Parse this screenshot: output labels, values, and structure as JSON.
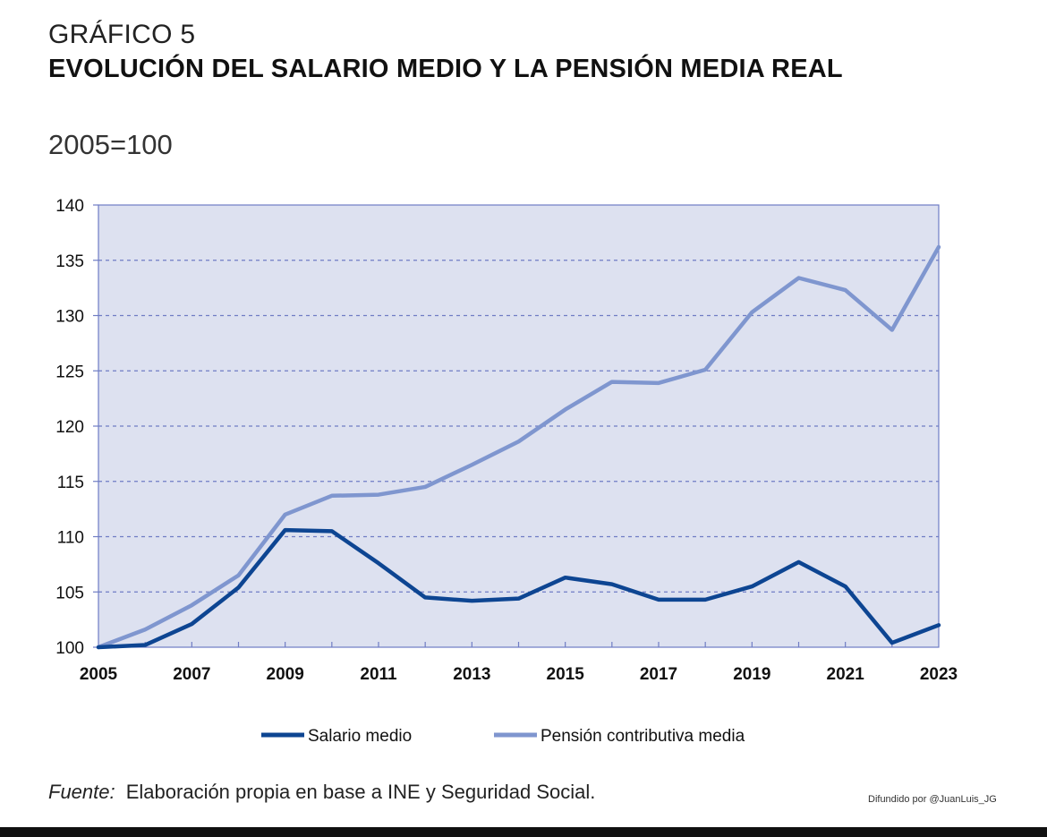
{
  "header": {
    "figure_label": "GRÁFICO 5",
    "title": "EVOLUCIÓN DEL SALARIO MEDIO Y LA PENSIÓN MEDIA REAL",
    "subtitle": "2005=100"
  },
  "footer": {
    "source_label": "Fuente:",
    "source_text": "Elaboración propia en base a INE y Seguridad Social.",
    "credit": "Difundido por @JuanLuis_JG"
  },
  "colors": {
    "plot_background": "#dde1f0",
    "grid": "#6f7cc4",
    "salario": "#0d4592",
    "pension": "#7f96cf"
  },
  "chart_data": {
    "type": "line",
    "x": [
      2005,
      2006,
      2007,
      2008,
      2009,
      2010,
      2011,
      2012,
      2013,
      2014,
      2015,
      2016,
      2017,
      2018,
      2019,
      2020,
      2021,
      2022,
      2023
    ],
    "x_tick_labels": [
      "2005",
      "2007",
      "2009",
      "2011",
      "2013",
      "2015",
      "2017",
      "2019",
      "2021",
      "2023"
    ],
    "y_tick_labels": [
      "100",
      "105",
      "110",
      "115",
      "120",
      "125",
      "130",
      "135",
      "140"
    ],
    "xlim": [
      2005,
      2023
    ],
    "ylim": [
      100,
      140
    ],
    "grid": true,
    "legend_position": "bottom",
    "series": [
      {
        "name": "Salario medio",
        "values": [
          100.0,
          100.2,
          102.1,
          105.4,
          110.6,
          110.5,
          107.6,
          104.5,
          104.2,
          104.4,
          106.3,
          105.7,
          104.3,
          104.3,
          105.5,
          107.7,
          105.5,
          100.4,
          102.0
        ]
      },
      {
        "name": "Pensión contributiva media",
        "values": [
          100.0,
          101.6,
          103.8,
          106.5,
          112.0,
          113.7,
          113.8,
          114.5,
          116.5,
          118.6,
          121.5,
          124.0,
          123.9,
          125.1,
          130.3,
          133.4,
          132.3,
          128.7,
          136.2
        ]
      }
    ]
  }
}
